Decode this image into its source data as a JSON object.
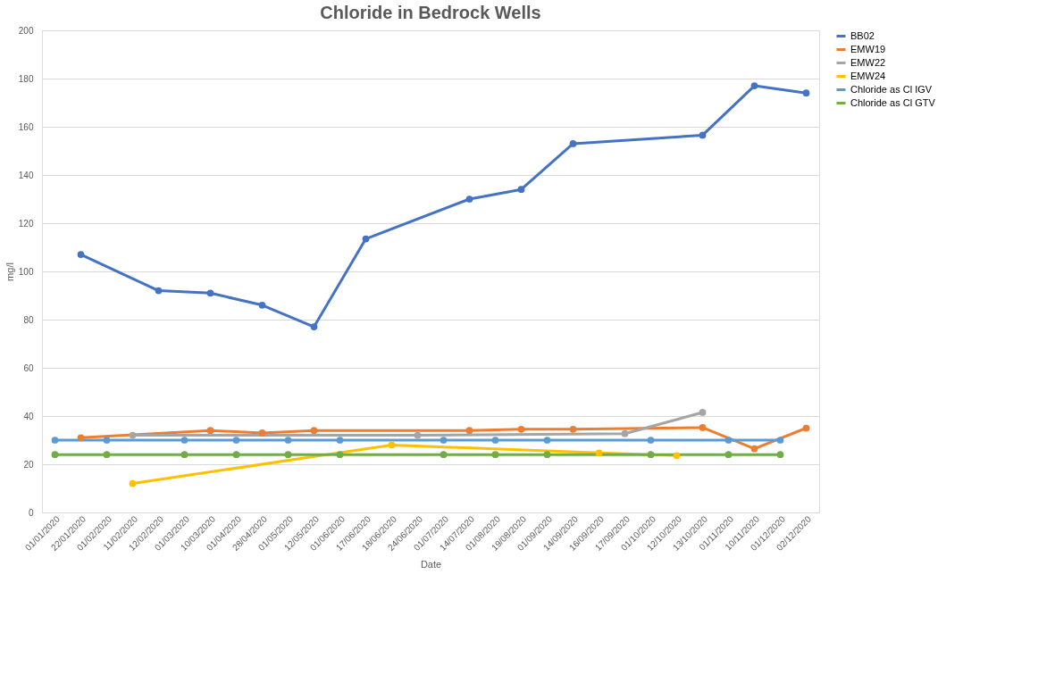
{
  "chart_data": {
    "type": "line",
    "title": "Chloride in Bedrock Wells",
    "xlabel": "Date",
    "ylabel": "mg/l",
    "categories": [
      "01/01/2020",
      "22/01/2020",
      "01/02/2020",
      "11/02/2020",
      "12/02/2020",
      "01/03/2020",
      "10/03/2020",
      "01/04/2020",
      "28/04/2020",
      "01/05/2020",
      "12/05/2020",
      "01/06/2020",
      "17/06/2020",
      "18/06/2020",
      "24/06/2020",
      "01/07/2020",
      "14/07/2020",
      "01/08/2020",
      "19/08/2020",
      "01/09/2020",
      "14/09/2020",
      "16/09/2020",
      "17/09/2020",
      "01/10/2020",
      "12/10/2020",
      "13/10/2020",
      "01/11/2020",
      "10/11/2020",
      "01/12/2020",
      "02/12/2020"
    ],
    "series": [
      {
        "name": "BB02",
        "color": "#4472c4",
        "values": [
          null,
          107,
          null,
          null,
          92,
          null,
          91,
          null,
          86,
          null,
          77,
          null,
          113.5,
          null,
          null,
          null,
          130,
          null,
          134,
          null,
          153,
          null,
          null,
          null,
          null,
          156.5,
          null,
          177,
          null,
          174
        ]
      },
      {
        "name": "EMW19",
        "color": "#ed7d31",
        "values": [
          null,
          31,
          null,
          null,
          null,
          null,
          34,
          null,
          33,
          null,
          34,
          null,
          null,
          null,
          null,
          null,
          34,
          null,
          34.5,
          null,
          34.5,
          null,
          null,
          null,
          null,
          35.2,
          null,
          26.4,
          null,
          35
        ]
      },
      {
        "name": "EMW22",
        "color": "#a5a5a5",
        "values": [
          null,
          null,
          null,
          32,
          null,
          null,
          null,
          null,
          null,
          null,
          null,
          null,
          null,
          null,
          32,
          null,
          null,
          null,
          null,
          null,
          null,
          null,
          32.7,
          null,
          null,
          41.5,
          null,
          null,
          null,
          null
        ]
      },
      {
        "name": "EMW24",
        "color": "#ffc000",
        "values": [
          null,
          null,
          null,
          12,
          null,
          null,
          null,
          null,
          null,
          null,
          null,
          null,
          null,
          28,
          null,
          null,
          null,
          null,
          null,
          null,
          null,
          24.7,
          null,
          null,
          23.6,
          null,
          null,
          null,
          null,
          null
        ]
      },
      {
        "name": "Chloride as Cl IGV",
        "color": "#5b9bd5",
        "values": [
          30,
          null,
          30,
          null,
          null,
          30,
          null,
          30,
          null,
          30,
          null,
          30,
          null,
          null,
          null,
          30,
          null,
          30,
          null,
          30,
          null,
          null,
          null,
          30,
          null,
          null,
          30,
          null,
          30,
          null
        ]
      },
      {
        "name": "Chloride as Cl GTV",
        "color": "#70ad47",
        "values": [
          24,
          null,
          24,
          null,
          null,
          24,
          null,
          24,
          null,
          24,
          null,
          24,
          null,
          null,
          null,
          24,
          null,
          24,
          null,
          24,
          null,
          null,
          null,
          24,
          null,
          null,
          24,
          null,
          24,
          null
        ]
      }
    ],
    "ylim": [
      0,
      200
    ],
    "yticks": [
      0,
      20,
      40,
      60,
      80,
      100,
      120,
      140,
      160,
      180,
      200
    ],
    "grid": "y",
    "legend": "right",
    "marker": "circle",
    "line_style": "solid"
  }
}
